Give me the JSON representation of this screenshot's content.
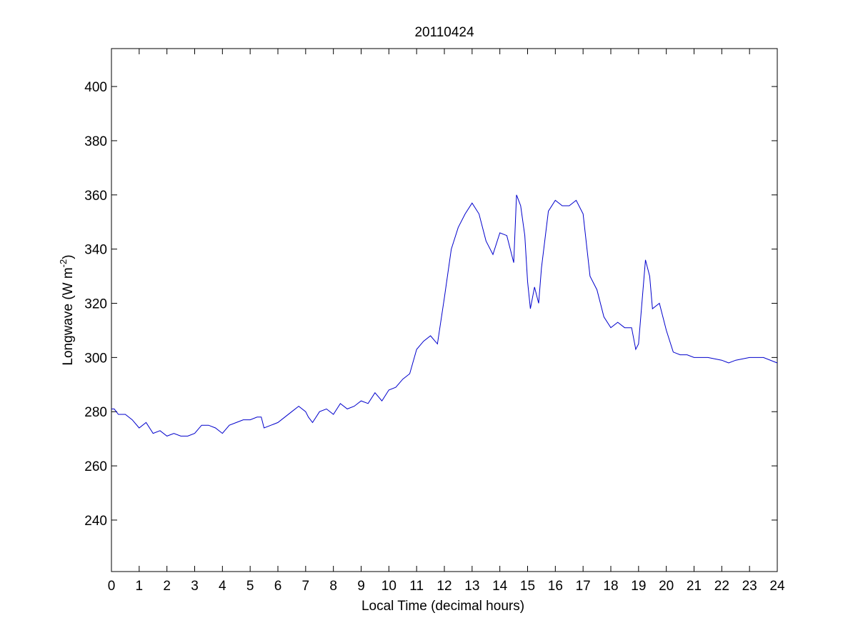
{
  "chart_data": {
    "type": "line",
    "title": "20110424",
    "xlabel": "Local Time (decimal hours)",
    "ylabel": "Longwave (W m",
    "ylabel_exponent": "-2",
    "ylabel_suffix": ")",
    "xlim": [
      0,
      24
    ],
    "ylim": [
      221,
      414
    ],
    "x_ticks": [
      0,
      1,
      2,
      3,
      4,
      5,
      6,
      7,
      8,
      9,
      10,
      11,
      12,
      13,
      14,
      15,
      16,
      17,
      18,
      19,
      20,
      21,
      22,
      23,
      24
    ],
    "y_ticks": [
      240,
      260,
      280,
      300,
      320,
      340,
      360,
      380,
      400
    ],
    "grid": false,
    "line_color": "#0000cc",
    "series": [
      {
        "x": [
          0.0,
          0.1,
          0.25,
          0.5,
          0.75,
          1.0,
          1.25,
          1.5,
          1.75,
          2.0,
          2.25,
          2.5,
          2.75,
          3.0,
          3.25,
          3.5,
          3.75,
          4.0,
          4.25,
          4.5,
          4.75,
          5.0,
          5.25,
          5.4,
          5.5,
          5.75,
          6.0,
          6.25,
          6.5,
          6.75,
          7.0,
          7.1,
          7.25,
          7.5,
          7.75,
          8.0,
          8.25,
          8.5,
          8.75,
          9.0,
          9.25,
          9.5,
          9.75,
          10.0,
          10.25,
          10.5,
          10.75,
          11.0,
          11.25,
          11.5,
          11.75,
          12.0,
          12.25,
          12.5,
          12.75,
          13.0,
          13.25,
          13.5,
          13.75,
          14.0,
          14.25,
          14.5,
          14.6,
          14.75,
          14.9,
          15.0,
          15.1,
          15.25,
          15.4,
          15.5,
          15.75,
          16.0,
          16.25,
          16.5,
          16.75,
          17.0,
          17.25,
          17.5,
          17.75,
          18.0,
          18.25,
          18.5,
          18.75,
          18.9,
          19.0,
          19.25,
          19.4,
          19.5,
          19.75,
          20.0,
          20.25,
          20.5,
          20.75,
          21.0,
          21.5,
          22.0,
          22.25,
          22.5,
          23.0,
          23.5,
          24.0
        ],
        "y": [
          281,
          281,
          279,
          279,
          277,
          274,
          276,
          272,
          273,
          271,
          272,
          271,
          271,
          272,
          275,
          275,
          274,
          272,
          275,
          276,
          277,
          277,
          278,
          278,
          274,
          275,
          276,
          278,
          280,
          282,
          280,
          278,
          276,
          280,
          281,
          279,
          283,
          281,
          282,
          284,
          283,
          287,
          284,
          288,
          289,
          292,
          294,
          303,
          306,
          308,
          305,
          322,
          340,
          348,
          353,
          357,
          353,
          343,
          338,
          346,
          345,
          335,
          360,
          356,
          345,
          328,
          318,
          326,
          320,
          333,
          354,
          358,
          356,
          356,
          358,
          353,
          330,
          325,
          315,
          311,
          313,
          311,
          311,
          303,
          305,
          336,
          330,
          318,
          320,
          310,
          302,
          301,
          301,
          300,
          300,
          299,
          298,
          299,
          300,
          300,
          298
        ]
      }
    ]
  }
}
